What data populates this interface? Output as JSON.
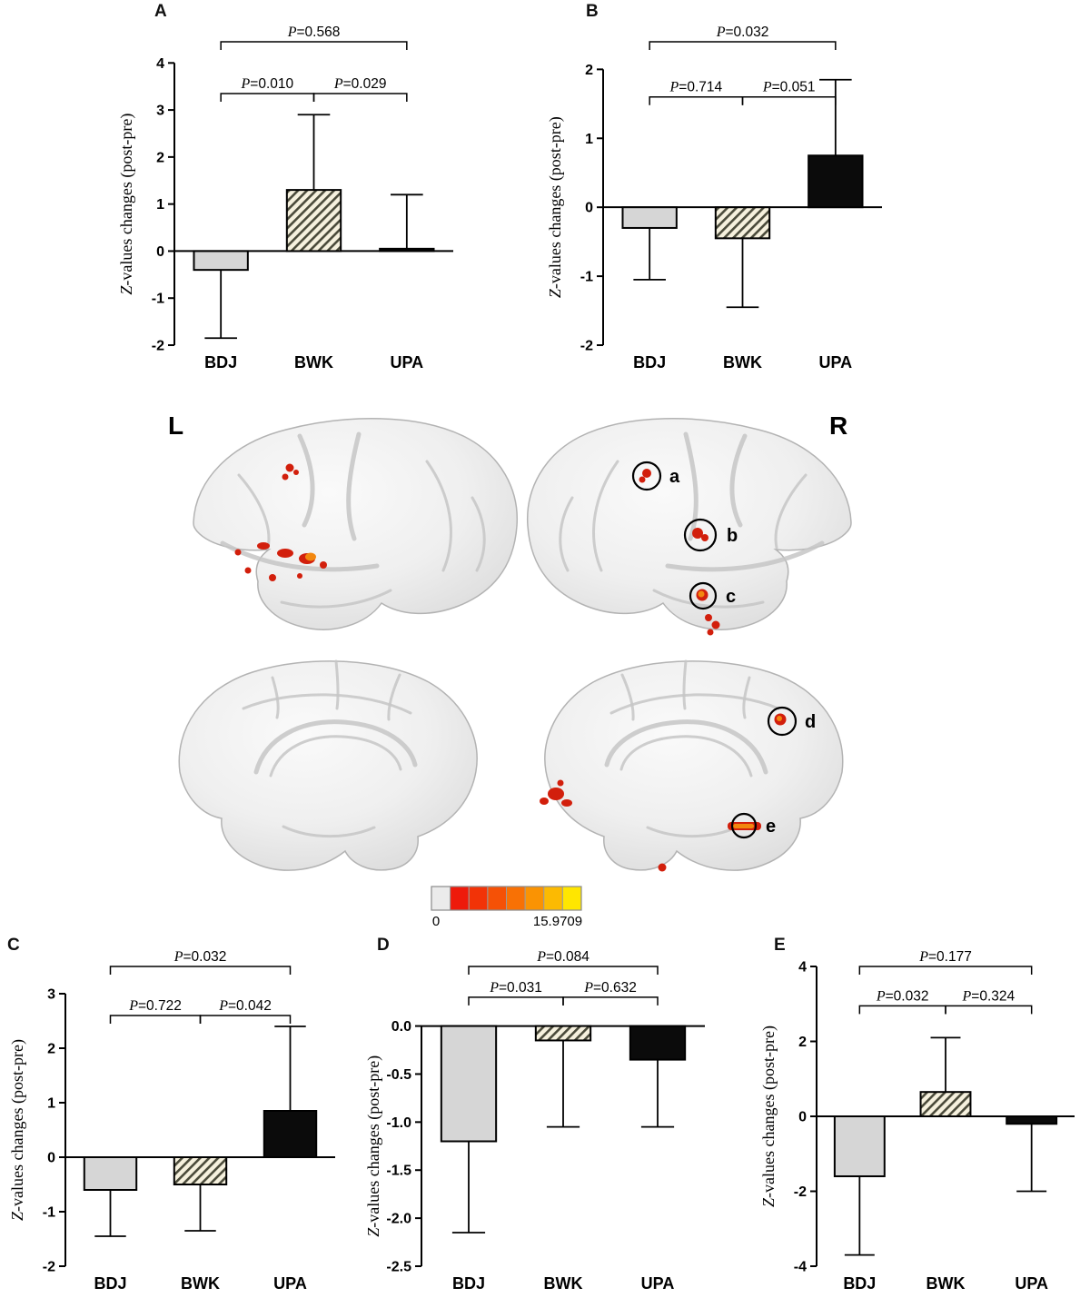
{
  "brain": {
    "left_label": "L",
    "right_label": "R",
    "circle_labels": [
      "a",
      "b",
      "c",
      "d",
      "e"
    ],
    "colorbar": {
      "min_label": "0",
      "max_label": "15.9709",
      "colors": [
        "#ebebeb",
        "#ee1a0b",
        "#f23307",
        "#f55106",
        "#f87105",
        "#fa9303",
        "#fcba02",
        "#ffe600"
      ]
    },
    "activation_color": "#d21f0c",
    "activation_hot_color": "#f2870e"
  },
  "chart_data": [
    {
      "panel_label": "A",
      "type": "bar",
      "categories": [
        "BDJ",
        "BWK",
        "UPA"
      ],
      "values": [
        -0.4,
        1.3,
        0.05
      ],
      "errors": [
        1.45,
        1.6,
        1.15
      ],
      "bar_styles": [
        "gray",
        "hatch",
        "black"
      ],
      "ylabel": "Z-values changes (post-pre)",
      "ylim": [
        -2,
        4
      ],
      "yticks": [
        4,
        3,
        2,
        1,
        0,
        -1,
        -2
      ],
      "ytick_labels": [
        "4",
        "3",
        "2",
        "1",
        "0",
        "-1",
        "-2"
      ],
      "comparisons": [
        {
          "from": 0,
          "to": 1,
          "label": "P=0.010",
          "y": 3.35
        },
        {
          "from": 1,
          "to": 2,
          "label": "P=0.029",
          "y": 3.35
        },
        {
          "from": 0,
          "to": 2,
          "label": "P=0.568",
          "y": 4.45
        }
      ]
    },
    {
      "panel_label": "B",
      "type": "bar",
      "categories": [
        "BDJ",
        "BWK",
        "UPA"
      ],
      "values": [
        -0.3,
        -0.45,
        0.75
      ],
      "errors": [
        0.75,
        1.0,
        1.1
      ],
      "bar_styles": [
        "gray",
        "hatch",
        "black"
      ],
      "ylabel": "Z-values changes (post-pre)",
      "ylim": [
        -2,
        2
      ],
      "yticks": [
        2,
        1,
        0,
        -1,
        -2
      ],
      "ytick_labels": [
        "2",
        "1",
        "0",
        "-1",
        "-2"
      ],
      "comparisons": [
        {
          "from": 0,
          "to": 1,
          "label": "P=0.714",
          "y": 1.6
        },
        {
          "from": 1,
          "to": 2,
          "label": "P=0.051",
          "y": 1.6
        },
        {
          "from": 0,
          "to": 2,
          "label": "P=0.032",
          "y": 2.4
        }
      ]
    },
    {
      "panel_label": "C",
      "type": "bar",
      "categories": [
        "BDJ",
        "BWK",
        "UPA"
      ],
      "values": [
        -0.6,
        -0.5,
        0.85
      ],
      "errors": [
        0.85,
        0.85,
        1.55
      ],
      "bar_styles": [
        "gray",
        "hatch",
        "black"
      ],
      "ylabel": "Z-values changes (post-pre)",
      "ylim": [
        -2,
        3
      ],
      "yticks": [
        3,
        2,
        1,
        0,
        -1,
        -2
      ],
      "ytick_labels": [
        "3",
        "2",
        "1",
        "0",
        "-1",
        "-2"
      ],
      "comparisons": [
        {
          "from": 0,
          "to": 1,
          "label": "P=0.722",
          "y": 2.6
        },
        {
          "from": 1,
          "to": 2,
          "label": "P=0.042",
          "y": 2.6
        },
        {
          "from": 0,
          "to": 2,
          "label": "P=0.032",
          "y": 3.5
        }
      ]
    },
    {
      "panel_label": "D",
      "type": "bar",
      "categories": [
        "BDJ",
        "BWK",
        "UPA"
      ],
      "values": [
        -1.2,
        -0.15,
        -0.35
      ],
      "errors": [
        0.95,
        0.9,
        0.7
      ],
      "bar_styles": [
        "gray",
        "hatch",
        "black"
      ],
      "ylabel": "Z-values changes (post-pre)",
      "ylim": [
        -2.5,
        0
      ],
      "yticks": [
        0,
        -0.5,
        -1,
        -1.5,
        -2,
        -2.5
      ],
      "ytick_labels": [
        "0.0",
        "-0.5",
        "-1.0",
        "-1.5",
        "-2.0",
        "-2.5"
      ],
      "comparisons": [
        {
          "from": 0,
          "to": 1,
          "label": "P=0.031",
          "y": 0.3
        },
        {
          "from": 1,
          "to": 2,
          "label": "P=0.632",
          "y": 0.3
        },
        {
          "from": 0,
          "to": 2,
          "label": "P=0.084",
          "y": 0.62
        }
      ]
    },
    {
      "panel_label": "E",
      "type": "bar",
      "categories": [
        "BDJ",
        "BWK",
        "UPA"
      ],
      "values": [
        -1.6,
        0.65,
        -0.2
      ],
      "errors": [
        2.1,
        1.45,
        1.8
      ],
      "bar_styles": [
        "gray",
        "hatch",
        "black"
      ],
      "ylabel": "Z-values changes (post-pre)",
      "ylim": [
        -4,
        4
      ],
      "yticks": [
        4,
        2,
        0,
        -2,
        -4
      ],
      "ytick_labels": [
        "4",
        "2",
        "0",
        "-2",
        "-4"
      ],
      "comparisons": [
        {
          "from": 0,
          "to": 1,
          "label": "P=0.032",
          "y": 2.95
        },
        {
          "from": 1,
          "to": 2,
          "label": "P=0.324",
          "y": 2.95
        },
        {
          "from": 0,
          "to": 2,
          "label": "P=0.177",
          "y": 4.0
        }
      ]
    }
  ]
}
